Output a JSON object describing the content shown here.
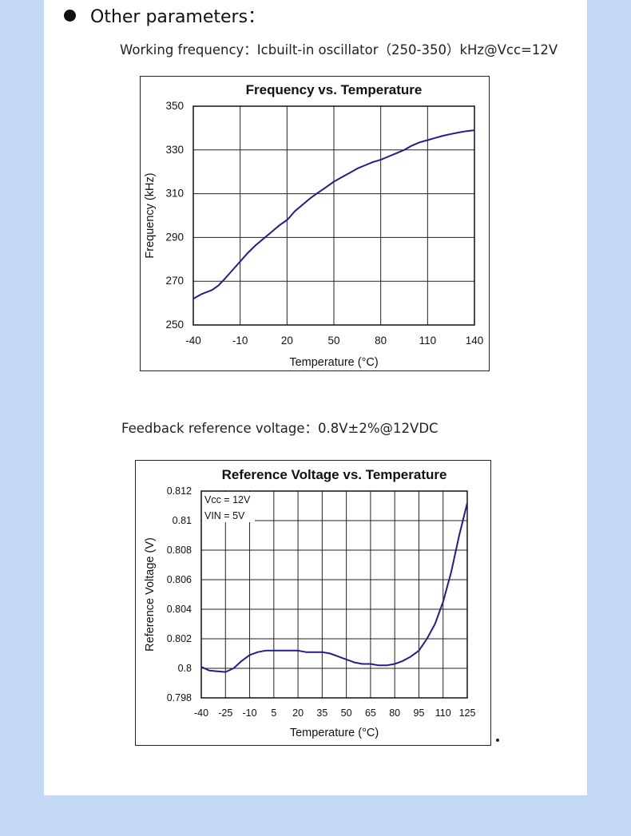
{
  "section": {
    "title": "Other parameters："
  },
  "params": {
    "frequency_line": "Working frequency：Icbuilt-in oscillator（250-350）kHz@Vcc=12V",
    "reference_line": "Feedback reference voltage：0.8V±2%@12VDC"
  },
  "colors": {
    "curve": "#1f1f8f",
    "grid": "#222222",
    "background": "#c3d8f2"
  },
  "chart_data": [
    {
      "type": "line",
      "title": "Frequency vs. Temperature",
      "xlabel": "Temperature (°C)",
      "ylabel": "Frequency (kHz)",
      "xlim": [
        -40,
        140
      ],
      "ylim": [
        250,
        350
      ],
      "xticks": [
        -40,
        -10,
        20,
        50,
        80,
        110,
        140
      ],
      "yticks": [
        250,
        270,
        290,
        310,
        330,
        350
      ],
      "xtick_labels": [
        "-40",
        "-10",
        "20",
        "50",
        "80",
        "110",
        "140"
      ],
      "ytick_labels": [
        "250",
        "270",
        "290",
        "310",
        "330",
        "350"
      ],
      "grid": true,
      "annotations": [],
      "series": [
        {
          "x": [
            -40,
            -35,
            -28,
            -24,
            -20,
            -15,
            -10,
            -5,
            0,
            5,
            10,
            15,
            20,
            22,
            25,
            30,
            35,
            40,
            45,
            50,
            55,
            60,
            65,
            70,
            75,
            80,
            85,
            90,
            95,
            100,
            105,
            110,
            115,
            120,
            125,
            130,
            135,
            140
          ],
          "values": [
            262,
            264,
            266,
            268,
            271,
            275,
            279,
            283,
            286.5,
            289.5,
            292.5,
            295.5,
            298,
            299.5,
            302,
            305,
            308,
            310.5,
            313,
            315.5,
            317.5,
            319.5,
            321.5,
            323,
            324.5,
            325.5,
            327,
            328.5,
            330,
            332,
            333.5,
            334.5,
            335.5,
            336.5,
            337.3,
            338,
            338.6,
            339
          ]
        }
      ]
    },
    {
      "type": "line",
      "title": "Reference Voltage vs. Temperature",
      "xlabel": "Temperature (°C)",
      "ylabel": "Reference Voltage (V)",
      "xlim": [
        -40,
        125
      ],
      "ylim": [
        0.798,
        0.812
      ],
      "xticks": [
        -40,
        -25,
        -10,
        5,
        20,
        35,
        50,
        65,
        80,
        95,
        110,
        125
      ],
      "yticks": [
        0.798,
        0.8,
        0.802,
        0.804,
        0.806,
        0.808,
        0.81,
        0.812
      ],
      "xtick_labels": [
        "-40",
        "-25",
        "-10",
        "5",
        "20",
        "35",
        "50",
        "65",
        "80",
        "95",
        "110",
        "125"
      ],
      "ytick_labels": [
        "0.798",
        "0.8",
        "0.802",
        "0.804",
        "0.806",
        "0.808",
        "0.81",
        "0.812"
      ],
      "grid": true,
      "annotations": [
        {
          "text": "Vcc = 12V"
        },
        {
          "text": "VIN = 5V"
        }
      ],
      "series": [
        {
          "x": [
            -40,
            -35,
            -30,
            -25,
            -20,
            -15,
            -10,
            -5,
            0,
            5,
            10,
            15,
            20,
            25,
            30,
            35,
            40,
            45,
            50,
            55,
            60,
            65,
            70,
            75,
            80,
            85,
            90,
            95,
            100,
            105,
            110,
            115,
            120,
            125
          ],
          "values": [
            0.8001,
            0.79985,
            0.7998,
            0.79975,
            0.8,
            0.8005,
            0.8009,
            0.8011,
            0.8012,
            0.8012,
            0.8012,
            0.8012,
            0.8012,
            0.8011,
            0.8011,
            0.8011,
            0.801,
            0.8008,
            0.8006,
            0.8004,
            0.8003,
            0.8003,
            0.8002,
            0.8002,
            0.8003,
            0.8005,
            0.8008,
            0.8012,
            0.802,
            0.803,
            0.8045,
            0.8065,
            0.809,
            0.8112
          ]
        }
      ]
    }
  ]
}
